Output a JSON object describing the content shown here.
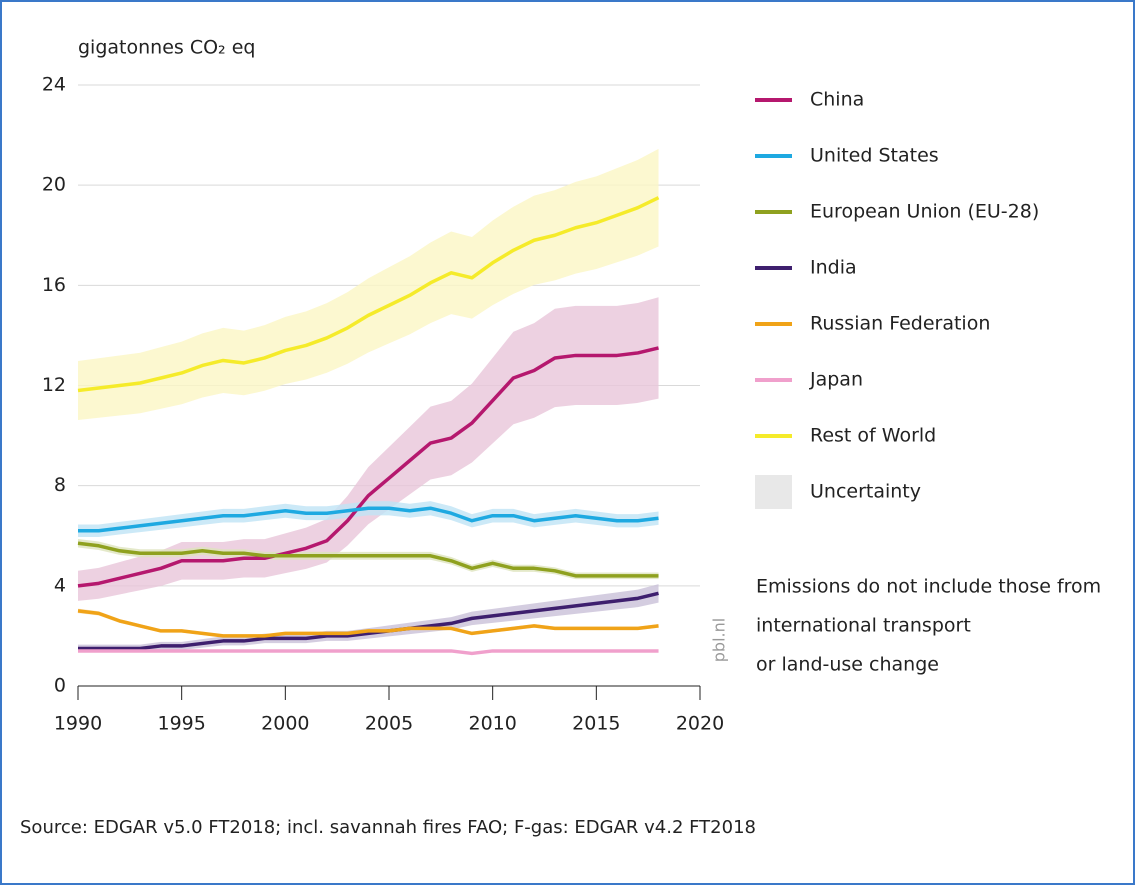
{
  "chart_data": {
    "type": "line",
    "ylabel": "gigatonnes CO₂ eq",
    "x": [
      1990,
      1991,
      1992,
      1993,
      1994,
      1995,
      1996,
      1997,
      1998,
      1999,
      2000,
      2001,
      2002,
      2003,
      2004,
      2005,
      2006,
      2007,
      2008,
      2009,
      2010,
      2011,
      2012,
      2013,
      2014,
      2015,
      2016,
      2017,
      2018
    ],
    "xlim": [
      1990,
      2020
    ],
    "xticks": [
      1990,
      1995,
      2000,
      2005,
      2010,
      2015,
      2020
    ],
    "ylim": [
      0,
      24
    ],
    "yticks": [
      0,
      4,
      8,
      12,
      16,
      20,
      24
    ],
    "grid": true,
    "series": [
      {
        "name": "China",
        "color": "#b5186e",
        "band_color": "#e9c6d9",
        "uncertainty": 0.15,
        "values": [
          4.0,
          4.1,
          4.3,
          4.5,
          4.7,
          5.0,
          5.0,
          5.0,
          5.1,
          5.1,
          5.3,
          5.5,
          5.8,
          6.6,
          7.6,
          8.3,
          9.0,
          9.7,
          9.9,
          10.5,
          11.4,
          12.3,
          12.6,
          13.1,
          13.2,
          13.2,
          13.2,
          13.3,
          13.5
        ]
      },
      {
        "name": "United States",
        "color": "#1ea9e1",
        "band_color": "#bfe4f5",
        "uncertainty": 0.04,
        "values": [
          6.2,
          6.2,
          6.3,
          6.4,
          6.5,
          6.6,
          6.7,
          6.8,
          6.8,
          6.9,
          7.0,
          6.9,
          6.9,
          7.0,
          7.1,
          7.1,
          7.0,
          7.1,
          6.9,
          6.6,
          6.8,
          6.8,
          6.6,
          6.7,
          6.8,
          6.7,
          6.6,
          6.6,
          6.7
        ]
      },
      {
        "name": "European Union (EU-28)",
        "color": "#8fa11f",
        "band_color": "#dde4bd",
        "uncertainty": 0.03,
        "values": [
          5.7,
          5.6,
          5.4,
          5.3,
          5.3,
          5.3,
          5.4,
          5.3,
          5.3,
          5.2,
          5.2,
          5.2,
          5.2,
          5.2,
          5.2,
          5.2,
          5.2,
          5.2,
          5.0,
          4.7,
          4.9,
          4.7,
          4.7,
          4.6,
          4.4,
          4.4,
          4.4,
          4.4,
          4.4
        ]
      },
      {
        "name": "India",
        "color": "#3e1f6e",
        "band_color": "#c9c0d8",
        "uncertainty": 0.1,
        "values": [
          1.5,
          1.5,
          1.5,
          1.5,
          1.6,
          1.6,
          1.7,
          1.8,
          1.8,
          1.9,
          1.9,
          1.9,
          2.0,
          2.0,
          2.1,
          2.2,
          2.3,
          2.4,
          2.5,
          2.7,
          2.8,
          2.9,
          3.0,
          3.1,
          3.2,
          3.3,
          3.4,
          3.5,
          3.7
        ]
      },
      {
        "name": "Russian Federation",
        "color": "#f0a318",
        "band_color": "#f8dfb0",
        "uncertainty": 0.03,
        "values": [
          3.0,
          2.9,
          2.6,
          2.4,
          2.2,
          2.2,
          2.1,
          2.0,
          2.0,
          2.0,
          2.1,
          2.1,
          2.1,
          2.1,
          2.2,
          2.2,
          2.3,
          2.3,
          2.3,
          2.1,
          2.2,
          2.3,
          2.4,
          2.3,
          2.3,
          2.3,
          2.3,
          2.3,
          2.4
        ]
      },
      {
        "name": "Japan",
        "color": "#f0a0cc",
        "band_color": "#f8dcec",
        "uncertainty": 0.03,
        "values": [
          1.4,
          1.4,
          1.4,
          1.4,
          1.4,
          1.4,
          1.4,
          1.4,
          1.4,
          1.4,
          1.4,
          1.4,
          1.4,
          1.4,
          1.4,
          1.4,
          1.4,
          1.4,
          1.4,
          1.3,
          1.4,
          1.4,
          1.4,
          1.4,
          1.4,
          1.4,
          1.4,
          1.4,
          1.4
        ]
      },
      {
        "name": "Rest of World",
        "color": "#f5eb2a",
        "band_color": "#fbf6c4",
        "uncertainty": 0.1,
        "values": [
          11.8,
          11.9,
          12.0,
          12.1,
          12.3,
          12.5,
          12.8,
          13.0,
          12.9,
          13.1,
          13.4,
          13.6,
          13.9,
          14.3,
          14.8,
          15.2,
          15.6,
          16.1,
          16.5,
          16.3,
          16.9,
          17.4,
          17.8,
          18.0,
          18.3,
          18.5,
          18.8,
          19.1,
          19.5
        ]
      }
    ],
    "uncertainty_label": "Uncertainty",
    "uncertainty_color": "#e8e8e8",
    "note": [
      "Emissions do not include those from",
      "international transport",
      "or land-use change"
    ],
    "watermark": "pbl.nl",
    "source": "Source: EDGAR v5.0 FT2018; incl. savannah fires FAO; F-gas: EDGAR v4.2 FT2018"
  }
}
